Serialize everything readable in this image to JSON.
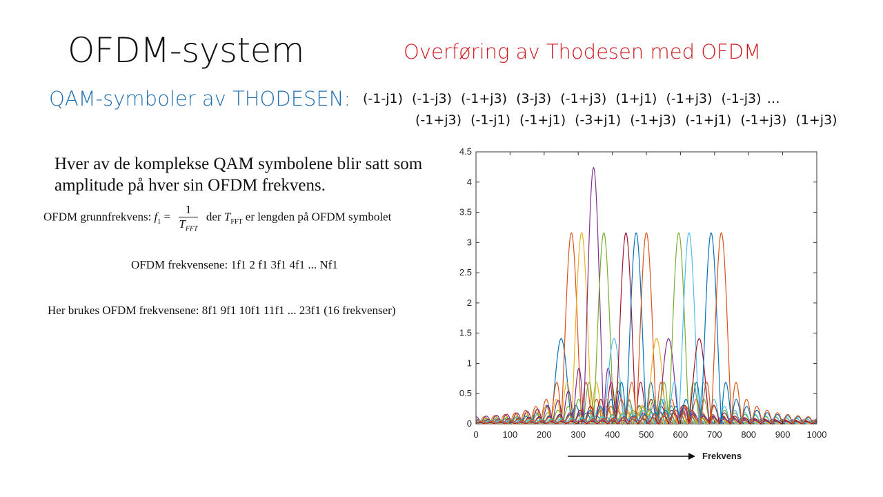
{
  "slide": {
    "title": "OFDM-system",
    "subtitle": "Overføring av Thodesen med OFDM",
    "qam_label": "QAM-symboler av THODESEN:",
    "symbols_row1": [
      "(-1-j1)",
      "(-1-j3)",
      "(-1+j3)",
      "(3-j3)",
      "(-1+j3)",
      "(1+j1)",
      "(-1+j3)",
      "(-1-j3) …"
    ],
    "symbols_row2": [
      "(-1+j3)",
      "(-1-j1)",
      "(-1+j1)",
      "(-3+j1)",
      "(-1+j3)",
      "(-1+j1)",
      "(-1+j3)",
      "(1+j3)"
    ],
    "description": "Hver av de komplekse QAM symbolene blir satt som amplitude på hver sin OFDM frekvens.",
    "eq_grunn_prefix": "OFDM grunnfrekvens: ",
    "eq_grunn_f": "f",
    "eq_grunn_sub": "1",
    "eq_grunn_equals": " =",
    "eq_grunn_num": "1",
    "eq_grunn_den": "T",
    "eq_grunn_den_sub": "FFT",
    "eq_grunn_der": "der ",
    "eq_grunn_T": "T",
    "eq_grunn_T_sub": "FFT",
    "eq_grunn_suffix": " er lengden på OFDM symbolet",
    "eq_frek": "OFDM frekvensene: 1f1 2 f1 3f1 4f1 ... Nf1",
    "eq_here": "Her brukes OFDM frekvensene: 8f1 9f1 10f1 11f1 ... 23f1 (16 frekvenser)"
  },
  "chart_data": {
    "type": "line",
    "xlabel": "Frekvens",
    "ylabel": "",
    "xlim": [
      0,
      1000
    ],
    "ylim": [
      0,
      4.5
    ],
    "xticks": [
      0,
      100,
      200,
      300,
      400,
      500,
      600,
      700,
      800,
      900,
      1000
    ],
    "yticks": [
      0,
      0.5,
      1,
      1.5,
      2,
      2.5,
      3,
      3.5,
      4,
      4.5
    ],
    "ytick_labels": [
      "0",
      "0.5",
      "1",
      "1.5",
      "2",
      "2.5",
      "3",
      "3.5",
      "4",
      "4.5"
    ],
    "main_lobe_half_width": 30,
    "series": [
      {
        "peak_x": 250,
        "amplitude": 1.41,
        "color": "#0072bd"
      },
      {
        "peak_x": 280,
        "amplitude": 3.16,
        "color": "#d95319"
      },
      {
        "peak_x": 310,
        "amplitude": 3.16,
        "color": "#edb120"
      },
      {
        "peak_x": 345,
        "amplitude": 4.24,
        "color": "#7e2f8e"
      },
      {
        "peak_x": 375,
        "amplitude": 3.16,
        "color": "#77ac30"
      },
      {
        "peak_x": 405,
        "amplitude": 1.41,
        "color": "#4dbeee"
      },
      {
        "peak_x": 440,
        "amplitude": 3.16,
        "color": "#a2142f"
      },
      {
        "peak_x": 470,
        "amplitude": 3.16,
        "color": "#0072bd"
      },
      {
        "peak_x": 500,
        "amplitude": 3.16,
        "color": "#d95319"
      },
      {
        "peak_x": 530,
        "amplitude": 1.41,
        "color": "#edb120"
      },
      {
        "peak_x": 565,
        "amplitude": 1.41,
        "color": "#7e2f8e"
      },
      {
        "peak_x": 595,
        "amplitude": 3.16,
        "color": "#77ac30"
      },
      {
        "peak_x": 625,
        "amplitude": 3.16,
        "color": "#4dbeee"
      },
      {
        "peak_x": 655,
        "amplitude": 1.41,
        "color": "#a2142f"
      },
      {
        "peak_x": 690,
        "amplitude": 3.16,
        "color": "#0072bd"
      },
      {
        "peak_x": 720,
        "amplitude": 3.16,
        "color": "#d95319"
      }
    ]
  }
}
